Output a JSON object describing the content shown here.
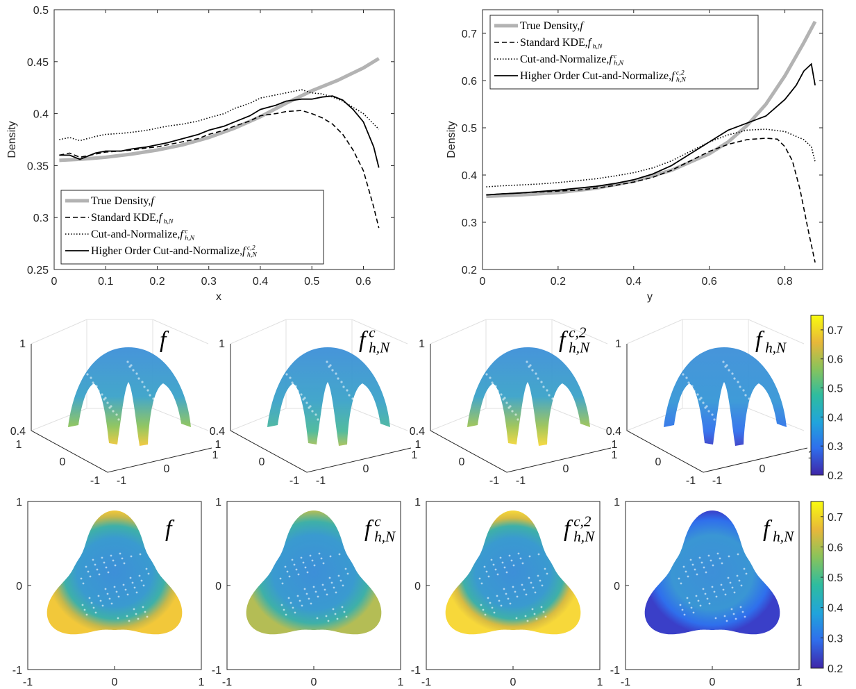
{
  "chart_data": [
    {
      "type": "line",
      "xlabel": "x",
      "ylabel": "Density",
      "xlim": [
        0,
        0.66
      ],
      "ylim": [
        0.25,
        0.5
      ],
      "xticks": [
        "0",
        "0.1",
        "0.2",
        "0.3",
        "0.4",
        "0.5",
        "0.6"
      ],
      "yticks": [
        "0.25",
        "0.3",
        "0.35",
        "0.4",
        "0.45",
        "0.5"
      ],
      "legend_position": "bottom-left",
      "series": [
        {
          "name": "True Density, f",
          "style": "thick-gray",
          "x": [
            0.01,
            0.05,
            0.1,
            0.15,
            0.2,
            0.25,
            0.3,
            0.35,
            0.4,
            0.45,
            0.5,
            0.55,
            0.6,
            0.63
          ],
          "y": [
            0.355,
            0.356,
            0.358,
            0.361,
            0.365,
            0.37,
            0.377,
            0.386,
            0.397,
            0.41,
            0.422,
            0.432,
            0.444,
            0.453
          ]
        },
        {
          "name": "Standard KDE, f_{h,N}",
          "style": "dashed",
          "x": [
            0.01,
            0.03,
            0.05,
            0.08,
            0.1,
            0.13,
            0.15,
            0.18,
            0.2,
            0.22,
            0.25,
            0.28,
            0.3,
            0.33,
            0.35,
            0.38,
            0.4,
            0.43,
            0.45,
            0.48,
            0.5,
            0.52,
            0.54,
            0.56,
            0.58,
            0.6,
            0.62,
            0.63
          ],
          "y": [
            0.36,
            0.362,
            0.358,
            0.361,
            0.363,
            0.364,
            0.365,
            0.367,
            0.368,
            0.37,
            0.373,
            0.376,
            0.38,
            0.384,
            0.388,
            0.393,
            0.398,
            0.4,
            0.402,
            0.403,
            0.4,
            0.396,
            0.39,
            0.38,
            0.365,
            0.345,
            0.31,
            0.29
          ]
        },
        {
          "name": "Cut-and-Normalize, f^c_{h,N}",
          "style": "dotted",
          "x": [
            0.01,
            0.03,
            0.05,
            0.08,
            0.1,
            0.13,
            0.15,
            0.18,
            0.2,
            0.22,
            0.25,
            0.28,
            0.3,
            0.33,
            0.35,
            0.38,
            0.4,
            0.43,
            0.45,
            0.48,
            0.5,
            0.52,
            0.54,
            0.56,
            0.58,
            0.6,
            0.62,
            0.63
          ],
          "y": [
            0.375,
            0.377,
            0.374,
            0.378,
            0.38,
            0.381,
            0.382,
            0.384,
            0.386,
            0.388,
            0.39,
            0.393,
            0.396,
            0.4,
            0.405,
            0.41,
            0.415,
            0.418,
            0.42,
            0.423,
            0.42,
            0.419,
            0.416,
            0.412,
            0.406,
            0.4,
            0.39,
            0.385
          ]
        },
        {
          "name": "Higher Order Cut-and-Normalize, f^{c,2}_{h,N}",
          "style": "solid",
          "x": [
            0.01,
            0.03,
            0.05,
            0.08,
            0.1,
            0.13,
            0.15,
            0.18,
            0.2,
            0.22,
            0.25,
            0.28,
            0.3,
            0.33,
            0.35,
            0.38,
            0.4,
            0.43,
            0.45,
            0.48,
            0.5,
            0.52,
            0.54,
            0.56,
            0.58,
            0.6,
            0.62,
            0.63
          ],
          "y": [
            0.36,
            0.36,
            0.356,
            0.362,
            0.364,
            0.364,
            0.366,
            0.368,
            0.37,
            0.372,
            0.376,
            0.38,
            0.384,
            0.388,
            0.392,
            0.398,
            0.404,
            0.408,
            0.412,
            0.414,
            0.414,
            0.416,
            0.417,
            0.413,
            0.404,
            0.392,
            0.368,
            0.348
          ]
        }
      ]
    },
    {
      "type": "line",
      "xlabel": "y",
      "ylabel": "Density",
      "xlim": [
        0,
        0.9
      ],
      "ylim": [
        0.2,
        0.75
      ],
      "xticks": [
        "0",
        "0.2",
        "0.4",
        "0.6",
        "0.8"
      ],
      "yticks": [
        "0.2",
        "0.3",
        "0.4",
        "0.5",
        "0.6",
        "0.7"
      ],
      "legend_position": "top-left",
      "series": [
        {
          "name": "True Density, f",
          "style": "thick-gray",
          "x": [
            0.01,
            0.1,
            0.2,
            0.3,
            0.4,
            0.5,
            0.6,
            0.65,
            0.7,
            0.75,
            0.8,
            0.85,
            0.88
          ],
          "y": [
            0.355,
            0.358,
            0.363,
            0.372,
            0.387,
            0.41,
            0.445,
            0.47,
            0.505,
            0.55,
            0.61,
            0.68,
            0.725
          ]
        },
        {
          "name": "Standard KDE, f_{h,N}",
          "style": "dashed",
          "x": [
            0.01,
            0.05,
            0.1,
            0.15,
            0.2,
            0.25,
            0.3,
            0.35,
            0.4,
            0.45,
            0.5,
            0.55,
            0.6,
            0.65,
            0.7,
            0.75,
            0.78,
            0.8,
            0.82,
            0.84,
            0.86,
            0.88
          ],
          "y": [
            0.358,
            0.36,
            0.362,
            0.364,
            0.366,
            0.368,
            0.372,
            0.378,
            0.385,
            0.395,
            0.41,
            0.43,
            0.45,
            0.465,
            0.475,
            0.478,
            0.476,
            0.46,
            0.43,
            0.37,
            0.29,
            0.215
          ]
        },
        {
          "name": "Cut-and-Normalize, f^c_{h,N}",
          "style": "dotted",
          "x": [
            0.01,
            0.05,
            0.1,
            0.15,
            0.2,
            0.25,
            0.3,
            0.35,
            0.4,
            0.45,
            0.5,
            0.55,
            0.6,
            0.65,
            0.7,
            0.75,
            0.8,
            0.85,
            0.87,
            0.88
          ],
          "y": [
            0.375,
            0.377,
            0.379,
            0.381,
            0.384,
            0.388,
            0.392,
            0.398,
            0.405,
            0.415,
            0.43,
            0.45,
            0.47,
            0.485,
            0.495,
            0.497,
            0.492,
            0.475,
            0.46,
            0.428
          ]
        },
        {
          "name": "Higher Order Cut-and-Normalize, f^{c,2}_{h,N}",
          "style": "solid",
          "x": [
            0.01,
            0.05,
            0.1,
            0.15,
            0.2,
            0.25,
            0.3,
            0.35,
            0.4,
            0.45,
            0.5,
            0.55,
            0.6,
            0.65,
            0.7,
            0.75,
            0.8,
            0.83,
            0.85,
            0.87,
            0.88
          ],
          "y": [
            0.358,
            0.36,
            0.362,
            0.365,
            0.368,
            0.372,
            0.376,
            0.382,
            0.39,
            0.402,
            0.42,
            0.445,
            0.47,
            0.495,
            0.51,
            0.525,
            0.56,
            0.59,
            0.62,
            0.635,
            0.59
          ]
        }
      ]
    },
    {
      "type": "scatter",
      "title": "f",
      "title_sub": "",
      "title_sup": "",
      "zlim": [
        0.4,
        1
      ],
      "xticks": [
        "-1",
        "0",
        "1"
      ],
      "yticks": [
        "-1",
        "0",
        "1"
      ],
      "zticks": [
        "0.4",
        "1"
      ]
    },
    {
      "type": "scatter",
      "title": "f",
      "title_sub": "h,N",
      "title_sup": "c",
      "zlim": [
        0.4,
        1
      ],
      "xticks": [
        "-1",
        "0",
        "1"
      ],
      "yticks": [
        "-1",
        "0",
        "1"
      ],
      "zticks": [
        "0.4",
        "1"
      ]
    },
    {
      "type": "scatter",
      "title": "f",
      "title_sub": "h,N",
      "title_sup": "c,2",
      "zlim": [
        0.4,
        1
      ],
      "xticks": [
        "-1",
        "0",
        "1"
      ],
      "yticks": [
        "-1",
        "0",
        "1"
      ],
      "zticks": [
        "0.4",
        "1"
      ]
    },
    {
      "type": "scatter",
      "title": "f",
      "title_sub": "h,N",
      "title_sup": "",
      "zlim": [
        0.4,
        1
      ],
      "xticks": [
        "-1",
        "0",
        "1"
      ],
      "yticks": [
        "-1",
        "0",
        "1"
      ],
      "zticks": [
        "0.4",
        "1"
      ]
    },
    {
      "type": "scatter",
      "title": "f",
      "title_sub": "",
      "title_sup": "",
      "xticks": [
        "-1",
        "0",
        "1"
      ],
      "yticks": [
        "-1",
        "0",
        "1"
      ]
    },
    {
      "type": "scatter",
      "title": "f",
      "title_sub": "h,N",
      "title_sup": "c",
      "xticks": [
        "-1",
        "0",
        "1"
      ],
      "yticks": [
        "-1",
        "0",
        "1"
      ]
    },
    {
      "type": "scatter",
      "title": "f",
      "title_sub": "h,N",
      "title_sup": "c,2",
      "xticks": [
        "-1",
        "0",
        "1"
      ],
      "yticks": [
        "-1",
        "0",
        "1"
      ]
    },
    {
      "type": "scatter",
      "title": "f",
      "title_sub": "h,N",
      "title_sup": "",
      "xticks": [
        "-1",
        "0",
        "1"
      ],
      "yticks": [
        "-1",
        "0",
        "1"
      ]
    }
  ],
  "colorbar": {
    "range": [
      0.2,
      0.75
    ],
    "ticks": [
      "0.7",
      "0.6",
      "0.5",
      "0.4",
      "0.3",
      "0.2"
    ],
    "colors": [
      "#3e26a8",
      "#2f6fec",
      "#21a4db",
      "#2ebc9f",
      "#8bc35a",
      "#e7b73a",
      "#f9fb0e"
    ]
  },
  "colors": {
    "true_density": "#b3b3b3",
    "estimates": "#000000",
    "axis": "#262626",
    "grid3d": "#e0e0e0"
  }
}
